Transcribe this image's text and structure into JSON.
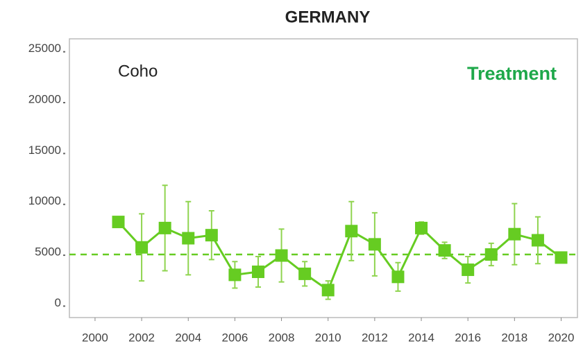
{
  "chart_data": {
    "type": "line",
    "title": "GERMANY",
    "annotations": [
      "Coho",
      "Treatment"
    ],
    "x": [
      2001,
      2002,
      2003,
      2004,
      2005,
      2006,
      2007,
      2008,
      2009,
      2010,
      2011,
      2012,
      2013,
      2014,
      2015,
      2016,
      2017,
      2018,
      2019,
      2020
    ],
    "values": [
      8000,
      5500,
      7400,
      6400,
      6700,
      2800,
      3100,
      4700,
      2900,
      1300,
      7100,
      5800,
      2600,
      7400,
      5200,
      3300,
      4800,
      6800,
      6200,
      4500
    ],
    "errors": [
      0,
      3300,
      4200,
      3600,
      2400,
      1300,
      1500,
      2600,
      1200,
      900,
      2900,
      3100,
      1400,
      600,
      800,
      1300,
      1100,
      3000,
      2300,
      0
    ],
    "reference_line": 4800,
    "color": "#66cc22",
    "xlim": [
      1998.9,
      2020.7
    ],
    "xticks": [
      2000,
      2002,
      2004,
      2006,
      2008,
      2010,
      2012,
      2014,
      2016,
      2018,
      2020
    ],
    "ylim": [
      -1400,
      26000
    ],
    "yticks": [
      0,
      5000,
      10000,
      15000,
      20000,
      25000
    ]
  }
}
